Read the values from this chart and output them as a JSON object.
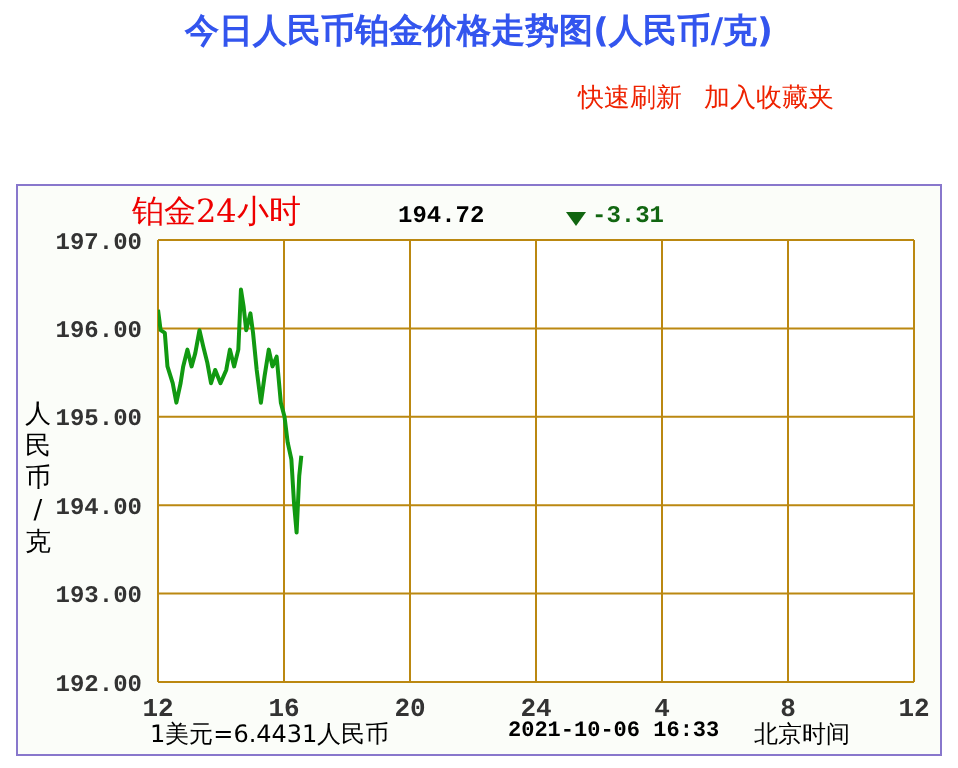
{
  "chart_data": {
    "type": "line",
    "title": "今日人民币铂金价格走势图(人民币/克)",
    "ylabel": "人民币/克",
    "annotations": [
      "快速刷新",
      "加入收藏夹",
      "铂金24小时",
      "194.72",
      "-3.31",
      "1美元=6.4431人民币",
      "2021-10-06 16:33",
      "北京时间"
    ],
    "x": [
      "2021-10-06T12:00",
      "2021-10-06T12:05",
      "2021-10-06T12:13",
      "2021-10-06T12:18",
      "2021-10-06T12:28",
      "2021-10-06T12:35",
      "2021-10-06T12:43",
      "2021-10-06T12:48",
      "2021-10-06T12:56",
      "2021-10-06T13:04",
      "2021-10-06T13:11",
      "2021-10-06T13:19",
      "2021-10-06T13:26",
      "2021-10-06T13:34",
      "2021-10-06T13:41",
      "2021-10-06T13:49",
      "2021-10-06T13:59",
      "2021-10-06T14:10",
      "2021-10-06T14:17",
      "2021-10-06T14:25",
      "2021-10-06T14:33",
      "2021-10-06T14:38",
      "2021-10-06T14:43",
      "2021-10-06T14:48",
      "2021-10-06T14:56",
      "2021-10-06T15:01",
      "2021-10-06T15:08",
      "2021-10-06T15:16",
      "2021-10-06T15:23",
      "2021-10-06T15:31",
      "2021-10-06T15:38",
      "2021-10-06T15:46",
      "2021-10-06T15:54",
      "2021-10-06T16:01",
      "2021-10-06T16:07",
      "2021-10-06T16:14",
      "2021-10-06T16:19",
      "2021-10-06T16:24",
      "2021-10-06T16:29",
      "2021-10-06T16:33"
    ],
    "series": [
      {
        "color": "#119911",
        "values": [
          196.21,
          195.98,
          195.95,
          195.57,
          195.38,
          195.16,
          195.38,
          195.57,
          195.76,
          195.57,
          195.72,
          195.98,
          195.8,
          195.61,
          195.38,
          195.53,
          195.38,
          195.53,
          195.76,
          195.57,
          195.76,
          196.44,
          196.25,
          195.98,
          196.17,
          195.95,
          195.53,
          195.16,
          195.46,
          195.76,
          195.57,
          195.68,
          195.16,
          195.0,
          194.71,
          194.52,
          194.03,
          193.69,
          194.33,
          194.56
        ]
      }
    ],
    "xlim": [
      "2021-10-06T12:00",
      "2021-10-07T12:00"
    ],
    "xticks": [
      {
        "value": "2021-10-06T12:00",
        "label": "12"
      },
      {
        "value": "2021-10-06T16:00",
        "label": "16"
      },
      {
        "value": "2021-10-06T20:00",
        "label": "20"
      },
      {
        "value": "2021-10-07T00:00",
        "label": "24"
      },
      {
        "value": "2021-10-07T04:00",
        "label": "4"
      },
      {
        "value": "2021-10-07T08:00",
        "label": "8"
      },
      {
        "value": "2021-10-07T12:00",
        "label": "12"
      }
    ],
    "ylim": [
      192,
      197
    ],
    "yticks": [
      {
        "value": 192,
        "label": "192.00"
      },
      {
        "value": 193,
        "label": "193.00"
      },
      {
        "value": 194,
        "label": "194.00"
      },
      {
        "value": 195,
        "label": "195.00"
      },
      {
        "value": 196,
        "label": "196.00"
      },
      {
        "value": 197,
        "label": "197.00"
      }
    ],
    "grid": true,
    "marker": "none",
    "line_style": "solid"
  }
}
